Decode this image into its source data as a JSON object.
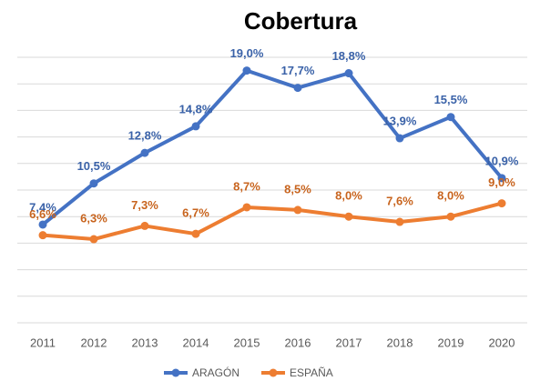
{
  "chart_data": {
    "type": "line",
    "title": "Cobertura",
    "categories": [
      "2011",
      "2012",
      "2013",
      "2014",
      "2015",
      "2016",
      "2017",
      "2018",
      "2019",
      "2020"
    ],
    "series": [
      {
        "name": "ARAGÓN",
        "color": "#4472c4",
        "label_color": "#3a62a8",
        "values": [
          7.4,
          10.5,
          12.8,
          14.8,
          19.0,
          17.7,
          18.8,
          13.9,
          15.5,
          10.9
        ],
        "value_labels": [
          "7,4%",
          "10,5%",
          "12,8%",
          "14,8%",
          "19,0%",
          "17,7%",
          "18,8%",
          "13,9%",
          "15,5%",
          "10,9%"
        ]
      },
      {
        "name": "ESPAÑA",
        "color": "#ed7d31",
        "label_color": "#c8641e",
        "values": [
          6.6,
          6.3,
          7.3,
          6.7,
          8.7,
          8.5,
          8.0,
          7.6,
          8.0,
          9.0
        ],
        "value_labels": [
          "6,6%",
          "6,3%",
          "7,3%",
          "6,7%",
          "8,7%",
          "8,5%",
          "8,0%",
          "7,6%",
          "8,0%",
          "9,0%"
        ]
      }
    ],
    "ylim": [
      0,
      20
    ],
    "yticks": [
      0,
      2,
      4,
      6,
      8,
      10,
      12,
      14,
      16,
      18,
      20
    ],
    "ytick_labels": false,
    "grid": true,
    "legend": "bottom"
  }
}
